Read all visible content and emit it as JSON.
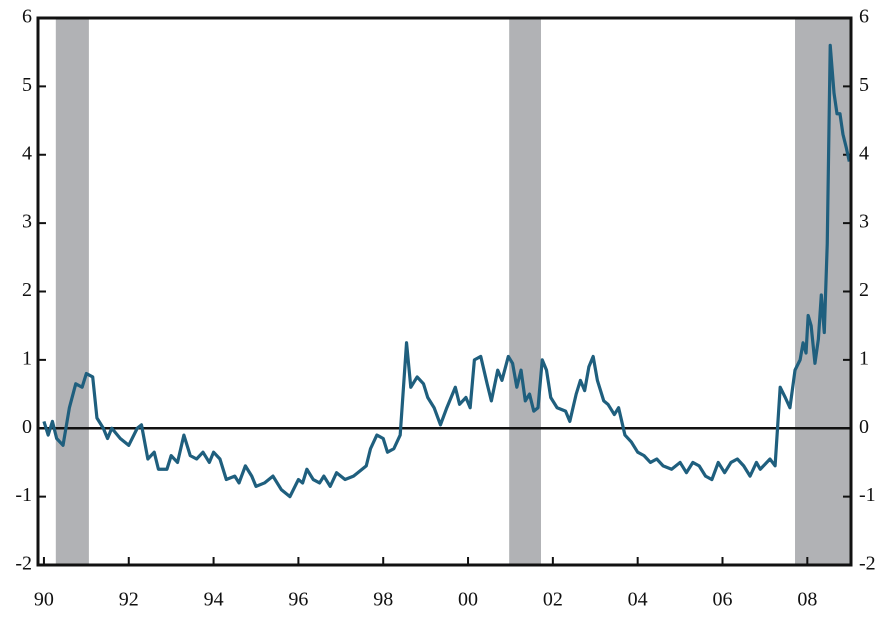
{
  "chart_data": {
    "type": "line",
    "xlim": [
      1989.86,
      2009.03
    ],
    "ylim": [
      -2,
      6
    ],
    "xticks": [
      {
        "value": 1990,
        "label": "90"
      },
      {
        "value": 1992,
        "label": "92"
      },
      {
        "value": 1994,
        "label": "94"
      },
      {
        "value": 1996,
        "label": "96"
      },
      {
        "value": 1998,
        "label": "98"
      },
      {
        "value": 2000,
        "label": "00"
      },
      {
        "value": 2002,
        "label": "02"
      },
      {
        "value": 2004,
        "label": "04"
      },
      {
        "value": 2006,
        "label": "06"
      },
      {
        "value": 2008,
        "label": "08"
      }
    ],
    "yticks": [
      -2,
      -1,
      0,
      1,
      2,
      3,
      4,
      5,
      6
    ],
    "y2lim": [
      -2,
      6
    ],
    "y2ticks": [
      -2,
      -1,
      0,
      1,
      2,
      3,
      4,
      5,
      6
    ],
    "shaded_ranges": [
      [
        1990.28,
        1991.06
      ],
      [
        2000.97,
        2001.72
      ],
      [
        2007.71,
        2009.03
      ]
    ],
    "shade_color": "#b1b2b5",
    "x": [
      1990.0,
      1990.1,
      1990.2,
      1990.3,
      1990.45,
      1990.6,
      1990.75,
      1990.9,
      1991.0,
      1991.15,
      1991.25,
      1991.4,
      1991.5,
      1991.6,
      1991.8,
      1992.0,
      1992.2,
      1992.3,
      1992.45,
      1992.6,
      1992.7,
      1992.9,
      1993.0,
      1993.15,
      1993.3,
      1993.45,
      1993.6,
      1993.75,
      1993.9,
      1994.0,
      1994.15,
      1994.3,
      1994.5,
      1994.6,
      1994.75,
      1994.9,
      1995.0,
      1995.2,
      1995.4,
      1995.6,
      1995.8,
      1996.0,
      1996.1,
      1996.2,
      1996.35,
      1996.5,
      1996.6,
      1996.75,
      1996.9,
      1997.1,
      1997.3,
      1997.4,
      1997.6,
      1997.7,
      1997.85,
      1998.0,
      1998.1,
      1998.25,
      1998.4,
      1998.55,
      1998.65,
      1998.8,
      1998.95,
      1999.05,
      1999.2,
      1999.35,
      1999.5,
      1999.7,
      1999.8,
      1999.95,
      2000.05,
      2000.15,
      2000.3,
      2000.45,
      2000.55,
      2000.7,
      2000.8,
      2000.95,
      2001.05,
      2001.15,
      2001.25,
      2001.35,
      2001.45,
      2001.55,
      2001.65,
      2001.75,
      2001.85,
      2001.95,
      2002.1,
      2002.3,
      2002.4,
      2002.55,
      2002.65,
      2002.75,
      2002.85,
      2002.95,
      2003.05,
      2003.2,
      2003.3,
      2003.45,
      2003.55,
      2003.7,
      2003.85,
      2004.0,
      2004.15,
      2004.3,
      2004.45,
      2004.6,
      2004.8,
      2005.0,
      2005.15,
      2005.3,
      2005.45,
      2005.6,
      2005.75,
      2005.9,
      2006.05,
      2006.2,
      2006.35,
      2006.5,
      2006.65,
      2006.8,
      2006.89,
      2007.12,
      2007.24,
      2007.36,
      2007.48,
      2007.59,
      2007.71,
      2007.83,
      2007.9,
      2007.97,
      2008.02,
      2008.09,
      2008.18,
      2008.26,
      2008.33,
      2008.4,
      2008.47,
      2008.54,
      2008.63,
      2008.7,
      2008.77,
      2008.84,
      2008.92,
      2008.99
    ],
    "series": [
      {
        "color": "#1f5f7e",
        "values": [
          0.1,
          -0.1,
          0.1,
          -0.15,
          -0.25,
          0.3,
          0.65,
          0.6,
          0.8,
          0.75,
          0.15,
          0.0,
          -0.15,
          0.0,
          -0.15,
          -0.25,
          0.0,
          0.05,
          -0.45,
          -0.35,
          -0.6,
          -0.6,
          -0.4,
          -0.5,
          -0.1,
          -0.4,
          -0.45,
          -0.35,
          -0.5,
          -0.35,
          -0.45,
          -0.75,
          -0.7,
          -0.8,
          -0.55,
          -0.7,
          -0.85,
          -0.8,
          -0.7,
          -0.9,
          -1.0,
          -0.75,
          -0.8,
          -0.6,
          -0.75,
          -0.8,
          -0.7,
          -0.85,
          -0.65,
          -0.75,
          -0.7,
          -0.65,
          -0.55,
          -0.3,
          -0.1,
          -0.15,
          -0.35,
          -0.3,
          -0.1,
          1.25,
          0.6,
          0.75,
          0.65,
          0.45,
          0.3,
          0.05,
          0.3,
          0.6,
          0.35,
          0.45,
          0.3,
          1.0,
          1.05,
          0.65,
          0.4,
          0.85,
          0.7,
          1.05,
          0.95,
          0.6,
          0.85,
          0.4,
          0.5,
          0.25,
          0.3,
          1.0,
          0.85,
          0.45,
          0.3,
          0.25,
          0.1,
          0.5,
          0.7,
          0.55,
          0.9,
          1.05,
          0.7,
          0.4,
          0.35,
          0.2,
          0.3,
          -0.1,
          -0.2,
          -0.35,
          -0.4,
          -0.5,
          -0.45,
          -0.55,
          -0.6,
          -0.5,
          -0.65,
          -0.5,
          -0.55,
          -0.7,
          -0.75,
          -0.5,
          -0.65,
          -0.5,
          -0.45,
          -0.55,
          -0.7,
          -0.5,
          -0.6,
          -0.45,
          -0.55,
          0.6,
          0.45,
          0.3,
          0.85,
          1.0,
          1.25,
          1.1,
          1.65,
          1.5,
          0.95,
          1.3,
          1.95,
          1.4,
          2.7,
          5.6,
          4.9,
          4.6,
          4.6,
          4.3,
          4.1,
          3.9
        ]
      }
    ]
  }
}
